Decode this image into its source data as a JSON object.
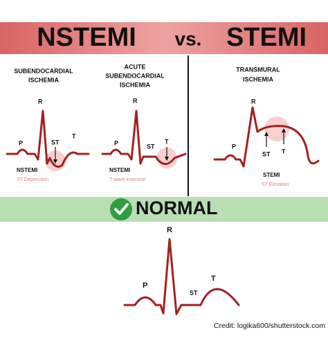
{
  "header": {
    "left": "NSTEMI",
    "middle": "vs.",
    "right": "STEMI"
  },
  "panels": [
    {
      "heading": [
        "SUBENDOCARDIAL",
        "ISCHEMIA"
      ],
      "labels": {
        "r": "R",
        "p": "P",
        "st": "ST",
        "t": "T"
      },
      "name": "NSTEMI",
      "caption": "ST Depression"
    },
    {
      "heading": [
        "ACUTE",
        "SUBENDOCARDIAL",
        "ISCHEMIA"
      ],
      "labels": {
        "r": "R",
        "p": "P",
        "st": "ST",
        "t": "T"
      },
      "name": "NSTEMI",
      "caption": "T wave inversion"
    },
    {
      "heading": [
        "TRANSMURAL",
        "ISCHEMIA"
      ],
      "labels": {
        "r": "R",
        "p": "P",
        "st": "ST",
        "t": "T"
      },
      "name": "STEMI",
      "caption": "ST Elevation"
    }
  ],
  "normal": {
    "title": "NORMAL",
    "labels": {
      "r": "R",
      "p": "P",
      "st": "ST",
      "t": "T"
    }
  },
  "credit": "Credit: logika600/shutterstock.com"
}
